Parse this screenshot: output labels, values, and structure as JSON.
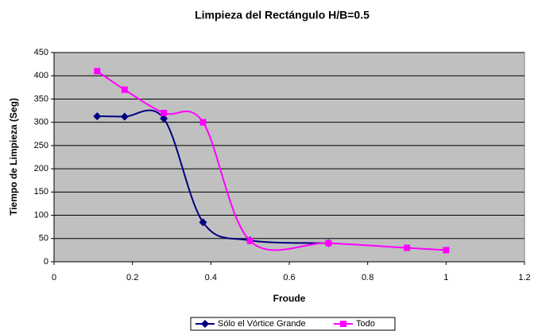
{
  "chart_data": {
    "type": "line",
    "title": "Limpieza del Rectángulo H/B=0.5",
    "x_label": "Froude",
    "y_label": "Tiempo de Limpieza (Seg)",
    "xlim": [
      0,
      1.2
    ],
    "xticks": [
      0,
      0.2,
      0.4,
      0.6,
      0.8,
      1,
      1.2
    ],
    "ylim": [
      0,
      450
    ],
    "yticks": [
      0,
      50,
      100,
      150,
      200,
      250,
      300,
      350,
      400,
      450
    ],
    "grid": true,
    "smooth": true,
    "legend": "bottom",
    "series": [
      {
        "name": "Sólo el Vórtice Grande",
        "color": "#000080",
        "marker": "diamond",
        "x": [
          0.11,
          0.18,
          0.28,
          0.38,
          0.5,
          0.7
        ],
        "values": [
          313,
          312,
          308,
          85,
          46,
          40
        ]
      },
      {
        "name": "Todo",
        "color": "#ff00ff",
        "marker": "square",
        "x": [
          0.11,
          0.18,
          0.28,
          0.38,
          0.5,
          0.7,
          0.9,
          1
        ],
        "values": [
          410,
          370,
          320,
          300,
          45,
          40,
          30,
          25
        ]
      }
    ]
  }
}
